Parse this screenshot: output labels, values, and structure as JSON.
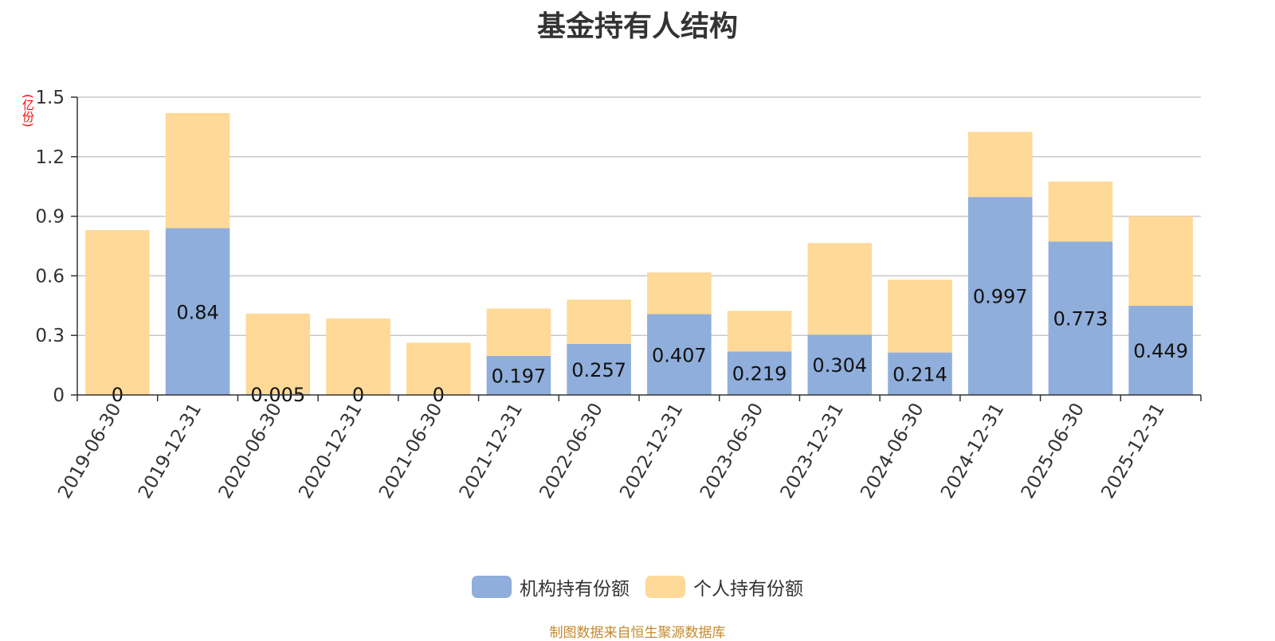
{
  "chart_data": {
    "type": "bar",
    "stacked": true,
    "title": "基金持有人结构",
    "unit": "(亿份)",
    "categories": [
      "2019-06-30",
      "2019-12-31",
      "2020-06-30",
      "2020-12-31",
      "2021-06-30",
      "2021-12-31",
      "2022-06-30",
      "2022-12-31",
      "2023-06-30",
      "2023-12-31",
      "2024-06-30",
      "2024-12-31",
      "2025-06-30",
      "2025-12-31"
    ],
    "ylim": [
      0,
      1.5
    ],
    "yticks": [
      "0",
      "0.3",
      "0.6",
      "0.9",
      "1.2",
      "1.5"
    ],
    "grid": true,
    "legend_position": "bottom",
    "series": [
      {
        "name": "机构持有份额",
        "color": "#8faedb",
        "values": [
          0,
          0.84,
          0.005,
          0,
          0,
          0.197,
          0.257,
          0.407,
          0.219,
          0.304,
          0.214,
          0.997,
          0.773,
          0.449
        ],
        "labels": [
          "0",
          "0.84",
          "0.005",
          "0",
          "0",
          "0.197",
          "0.257",
          "0.407",
          "0.219",
          "0.304",
          "0.214",
          "0.997",
          "0.773",
          "0.449"
        ]
      },
      {
        "name": "个人持有份额",
        "color": "#fed997",
        "values": [
          0.83,
          0.58,
          0.405,
          0.385,
          0.263,
          0.238,
          0.223,
          0.21,
          0.205,
          0.461,
          0.367,
          0.328,
          0.302,
          0.451
        ]
      }
    ]
  },
  "source_note": "制图数据来自恒生聚源数据库"
}
